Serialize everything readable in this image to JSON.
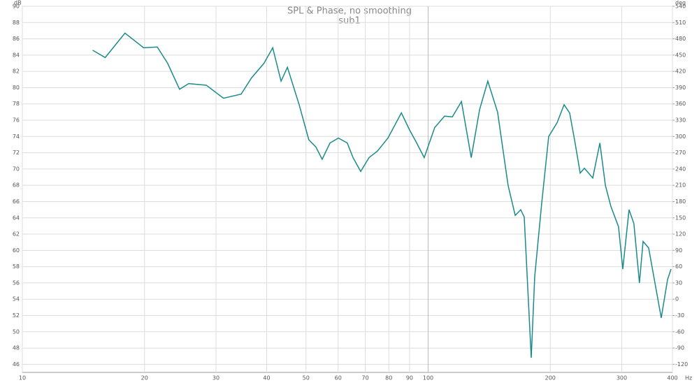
{
  "chart_data": {
    "type": "line",
    "title": "SPL & Phase, no smoothing",
    "subtitle": "sub1",
    "xlabel": "Hz",
    "ylabel": "dB",
    "y2label": "deg",
    "xscale": "log",
    "grid": true,
    "xlim": [
      10,
      400
    ],
    "xticks": [
      10,
      20,
      30,
      40,
      50,
      60,
      70,
      80,
      90,
      100,
      200,
      300,
      400
    ],
    "ylim": [
      45,
      90
    ],
    "yticks": [
      46,
      48,
      50,
      52,
      54,
      56,
      58,
      60,
      62,
      64,
      66,
      68,
      70,
      72,
      74,
      76,
      78,
      80,
      82,
      84,
      86,
      88,
      90
    ],
    "y2lim": [
      -135,
      540
    ],
    "y2ticks": [
      -120,
      -90,
      -60,
      -30,
      0,
      30,
      60,
      90,
      120,
      150,
      180,
      210,
      240,
      270,
      300,
      330,
      360,
      390,
      420,
      450,
      480,
      510,
      540
    ],
    "series": [
      {
        "name": "sub1",
        "color": "#1b8a8a",
        "x": [
          14.9,
          16.0,
          17.9,
          19.9,
          21.5,
          22.8,
          24.4,
          25.7,
          28.4,
          31.3,
          34.6,
          36.7,
          39.4,
          41.4,
          43.4,
          45.0,
          48.1,
          50.8,
          52.9,
          54.8,
          57.3,
          60.1,
          63.2,
          65.3,
          68.2,
          71.5,
          75.0,
          79.6,
          85.9,
          90.0,
          93.7,
          97.8,
          103.8,
          109.8,
          114.7,
          120.8,
          127.7,
          133.9,
          140.3,
          148.3,
          157.4,
          163.9,
          169.1,
          172.5,
          179.5,
          183.1,
          190.5,
          198.2,
          207.9,
          216.3,
          223.2,
          229.5,
          237.0,
          242.7,
          254.5,
          265.0,
          273.4,
          282.1,
          294.6,
          301.8,
          312.7,
          321.4,
          331.7,
          338.6,
          349.5,
          362.2,
          375.4,
          389.0,
          396.8
        ],
        "values": [
          84.6,
          83.7,
          86.7,
          84.9,
          85.0,
          83.0,
          79.8,
          80.5,
          80.3,
          78.7,
          79.2,
          81.2,
          83.0,
          84.9,
          80.8,
          82.5,
          77.9,
          73.6,
          72.7,
          71.2,
          73.2,
          73.8,
          73.2,
          71.4,
          69.7,
          71.4,
          72.2,
          73.8,
          76.9,
          74.8,
          73.2,
          71.4,
          75.1,
          76.5,
          76.4,
          78.3,
          71.4,
          77.3,
          80.8,
          77.0,
          68.0,
          64.3,
          65.0,
          64.1,
          46.8,
          56.8,
          65.8,
          74.0,
          75.7,
          77.9,
          76.9,
          73.6,
          69.5,
          70.1,
          68.9,
          73.2,
          68.0,
          65.4,
          62.9,
          57.7,
          65.0,
          63.3,
          56.0,
          61.1,
          60.3,
          56.0,
          51.7,
          56.4,
          57.7
        ]
      }
    ]
  }
}
